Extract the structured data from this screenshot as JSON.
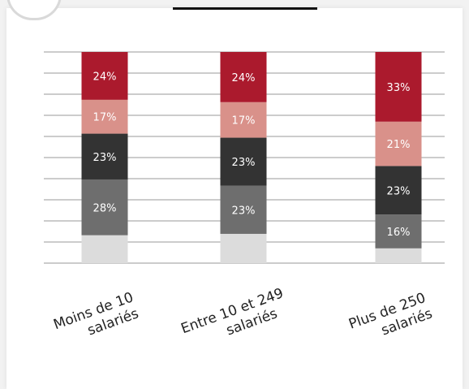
{
  "chart_data": {
    "type": "bar",
    "stacked": true,
    "categories": [
      [
        "Moins de 10",
        "salariés"
      ],
      [
        "Entre 10 et 249",
        "salariés"
      ],
      [
        "Plus de 250",
        "salariés"
      ]
    ],
    "series_order_bottom_to_top": [
      "s5",
      "s4",
      "s3",
      "s2",
      "s1"
    ],
    "series": [
      {
        "key": "s1",
        "color": "#ab1a2d",
        "values": [
          24,
          24,
          33
        ]
      },
      {
        "key": "s2",
        "color": "#d9918a",
        "values": [
          17,
          17,
          21
        ]
      },
      {
        "key": "s3",
        "color": "#333333",
        "values": [
          23,
          23,
          23
        ]
      },
      {
        "key": "s4",
        "color": "#6e6e6e",
        "values": [
          28,
          23,
          16
        ]
      },
      {
        "key": "s5",
        "color": "#dcdcdc",
        "values": [
          14,
          14,
          7
        ],
        "show_labels": false
      }
    ],
    "label_suffix": "%",
    "grid": true,
    "title": "",
    "xlabel": "",
    "ylabel": ""
  }
}
